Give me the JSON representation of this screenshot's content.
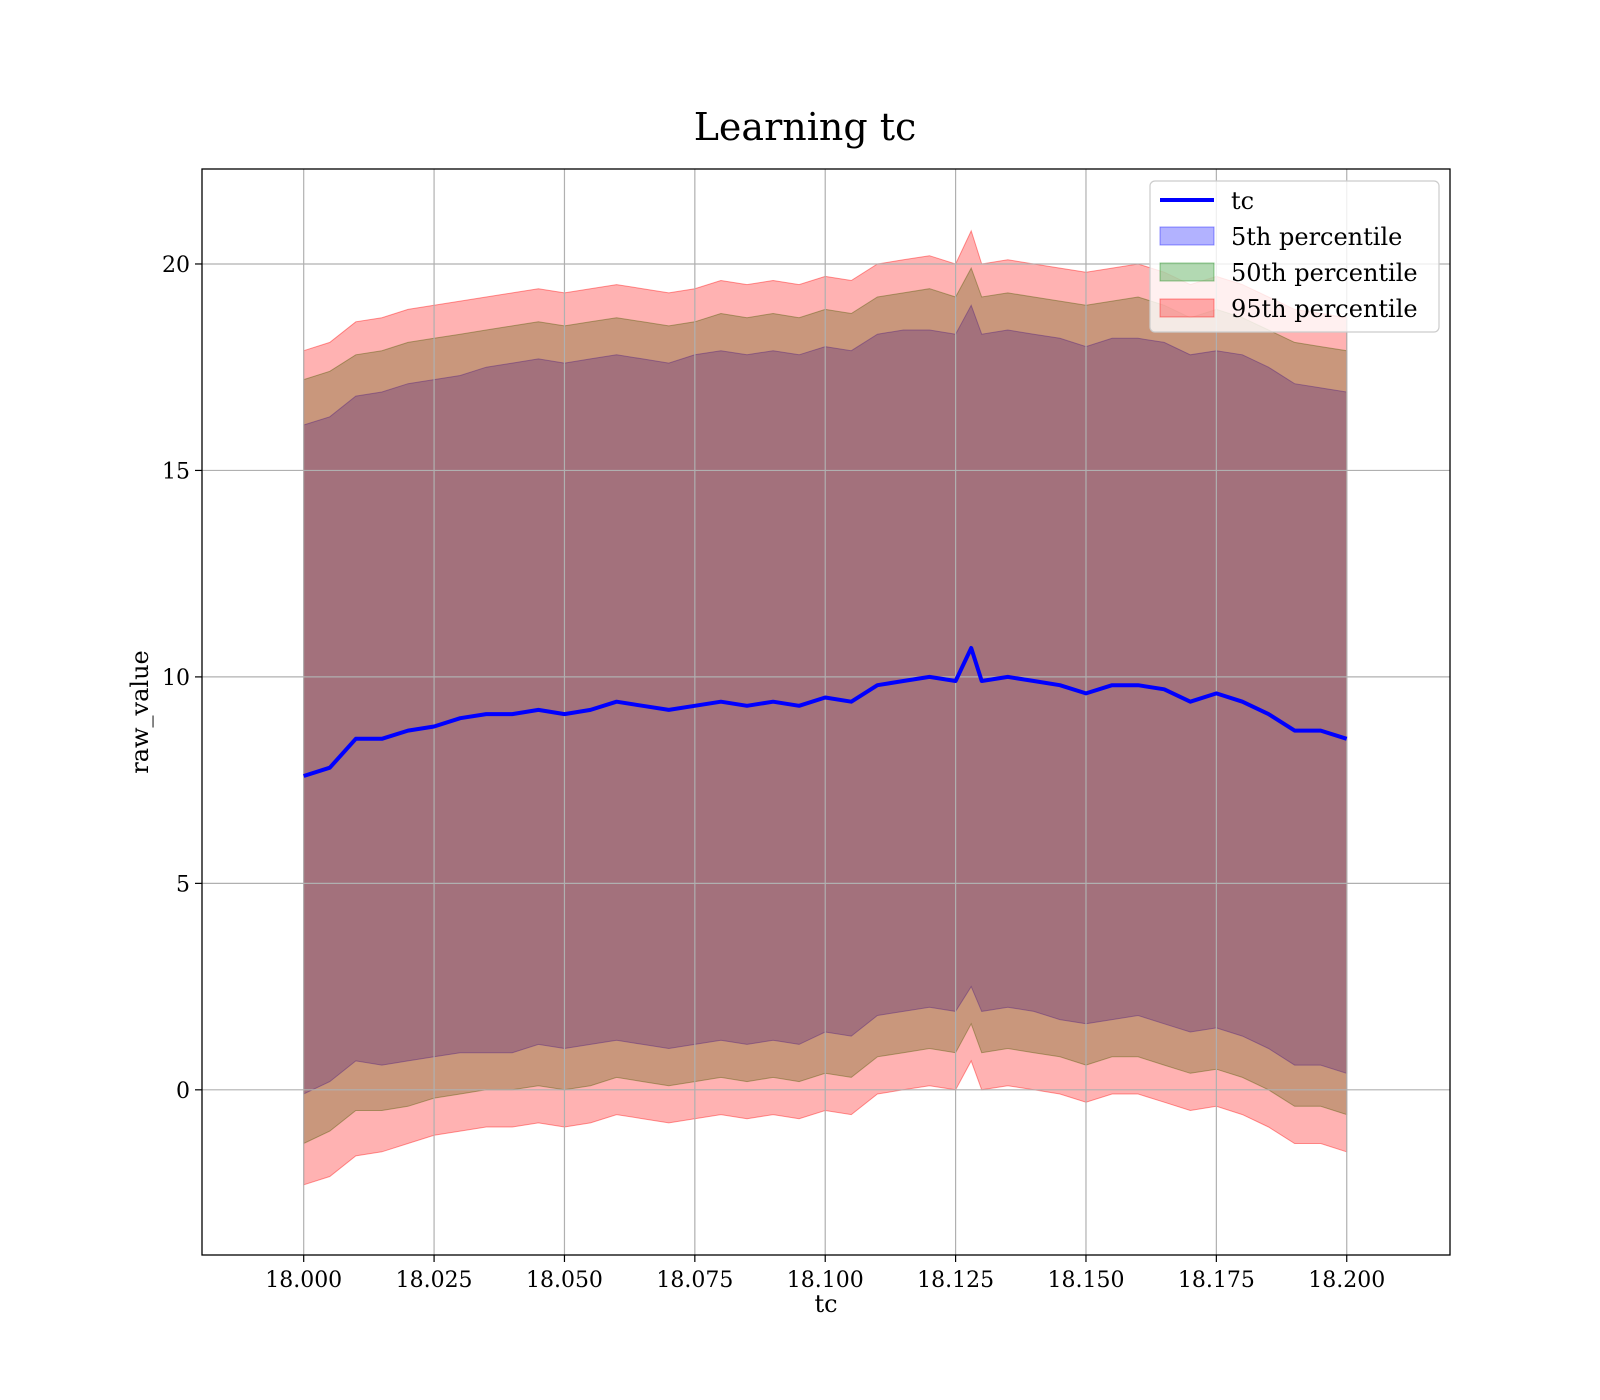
{
  "chart_data": {
    "type": "area",
    "title": "Learning tc",
    "xlabel": "tc",
    "ylabel": "raw_value",
    "xlim": [
      17.9805,
      18.2198
    ],
    "ylim": [
      -4.0,
      22.3
    ],
    "xticks": [
      18.0,
      18.025,
      18.05,
      18.075,
      18.1,
      18.125,
      18.15,
      18.175,
      18.2
    ],
    "xtick_labels": [
      "18.000",
      "18.025",
      "18.050",
      "18.075",
      "18.100",
      "18.125",
      "18.150",
      "18.175",
      "18.200"
    ],
    "yticks": [
      0,
      5,
      10,
      15,
      20
    ],
    "ytick_labels": [
      "0",
      "5",
      "10",
      "15",
      "20"
    ],
    "grid": true,
    "legend_position": "top-right",
    "line": {
      "name": "tc",
      "color": "#0000ff",
      "x": [
        18.0,
        18.005,
        18.01,
        18.015,
        18.02,
        18.025,
        18.03,
        18.035,
        18.04,
        18.045,
        18.05,
        18.055,
        18.06,
        18.065,
        18.07,
        18.075,
        18.08,
        18.085,
        18.09,
        18.095,
        18.1,
        18.105,
        18.11,
        18.115,
        18.12,
        18.125,
        18.128,
        18.13,
        18.135,
        18.14,
        18.145,
        18.15,
        18.155,
        18.16,
        18.165,
        18.17,
        18.175,
        18.18,
        18.185,
        18.19,
        18.195,
        18.2
      ],
      "y": [
        7.6,
        7.8,
        8.5,
        8.5,
        8.7,
        8.8,
        9.0,
        9.1,
        9.1,
        9.2,
        9.1,
        9.2,
        9.4,
        9.3,
        9.2,
        9.3,
        9.4,
        9.3,
        9.4,
        9.3,
        9.5,
        9.4,
        9.8,
        9.9,
        10.0,
        9.9,
        10.7,
        9.9,
        10.0,
        9.9,
        9.8,
        9.6,
        9.8,
        9.8,
        9.7,
        9.4,
        9.6,
        9.4,
        9.1,
        8.7,
        8.7,
        8.5
      ]
    },
    "bands": [
      {
        "name": "5th percentile",
        "color": "#0000ff",
        "opacity": 0.3,
        "lower": [
          -0.1,
          0.2,
          0.7,
          0.6,
          0.7,
          0.8,
          0.9,
          0.9,
          0.9,
          1.1,
          1.0,
          1.1,
          1.2,
          1.1,
          1.0,
          1.1,
          1.2,
          1.1,
          1.2,
          1.1,
          1.4,
          1.3,
          1.8,
          1.9,
          2.0,
          1.9,
          2.5,
          1.9,
          2.0,
          1.9,
          1.7,
          1.6,
          1.7,
          1.8,
          1.6,
          1.4,
          1.5,
          1.3,
          1.0,
          0.6,
          0.6,
          0.4
        ],
        "upper": [
          16.1,
          16.3,
          16.8,
          16.9,
          17.1,
          17.2,
          17.3,
          17.5,
          17.6,
          17.7,
          17.6,
          17.7,
          17.8,
          17.7,
          17.6,
          17.8,
          17.9,
          17.8,
          17.9,
          17.8,
          18.0,
          17.9,
          18.3,
          18.4,
          18.4,
          18.3,
          19.0,
          18.3,
          18.4,
          18.3,
          18.2,
          18.0,
          18.2,
          18.2,
          18.1,
          17.8,
          17.9,
          17.8,
          17.5,
          17.1,
          17.0,
          16.9
        ]
      },
      {
        "name": "50th percentile",
        "color": "#008000",
        "opacity": 0.3,
        "lower": [
          -1.3,
          -1.0,
          -0.5,
          -0.5,
          -0.4,
          -0.2,
          -0.1,
          0.0,
          0.0,
          0.1,
          0.0,
          0.1,
          0.3,
          0.2,
          0.1,
          0.2,
          0.3,
          0.2,
          0.3,
          0.2,
          0.4,
          0.3,
          0.8,
          0.9,
          1.0,
          0.9,
          1.6,
          0.9,
          1.0,
          0.9,
          0.8,
          0.6,
          0.8,
          0.8,
          0.6,
          0.4,
          0.5,
          0.3,
          0.0,
          -0.4,
          -0.4,
          -0.6
        ],
        "upper": [
          17.2,
          17.4,
          17.8,
          17.9,
          18.1,
          18.2,
          18.3,
          18.4,
          18.5,
          18.6,
          18.5,
          18.6,
          18.7,
          18.6,
          18.5,
          18.6,
          18.8,
          18.7,
          18.8,
          18.7,
          18.9,
          18.8,
          19.2,
          19.3,
          19.4,
          19.2,
          19.9,
          19.2,
          19.3,
          19.2,
          19.1,
          19.0,
          19.1,
          19.2,
          19.0,
          18.7,
          18.9,
          18.7,
          18.4,
          18.1,
          18.0,
          17.9
        ]
      },
      {
        "name": "95th percentile",
        "color": "#ff0000",
        "opacity": 0.3,
        "lower": [
          -2.3,
          -2.1,
          -1.6,
          -1.5,
          -1.3,
          -1.1,
          -1.0,
          -0.9,
          -0.9,
          -0.8,
          -0.9,
          -0.8,
          -0.6,
          -0.7,
          -0.8,
          -0.7,
          -0.6,
          -0.7,
          -0.6,
          -0.7,
          -0.5,
          -0.6,
          -0.1,
          0.0,
          0.1,
          0.0,
          0.7,
          0.0,
          0.1,
          0.0,
          -0.1,
          -0.3,
          -0.1,
          -0.1,
          -0.3,
          -0.5,
          -0.4,
          -0.6,
          -0.9,
          -1.3,
          -1.3,
          -1.5
        ],
        "upper": [
          17.9,
          18.1,
          18.6,
          18.7,
          18.9,
          19.0,
          19.1,
          19.2,
          19.3,
          19.4,
          19.3,
          19.4,
          19.5,
          19.4,
          19.3,
          19.4,
          19.6,
          19.5,
          19.6,
          19.5,
          19.7,
          19.6,
          20.0,
          20.1,
          20.2,
          20.0,
          20.8,
          20.0,
          20.1,
          20.0,
          19.9,
          19.8,
          19.9,
          20.0,
          19.8,
          19.5,
          19.7,
          19.5,
          19.2,
          18.9,
          18.8,
          18.7
        ]
      }
    ]
  }
}
